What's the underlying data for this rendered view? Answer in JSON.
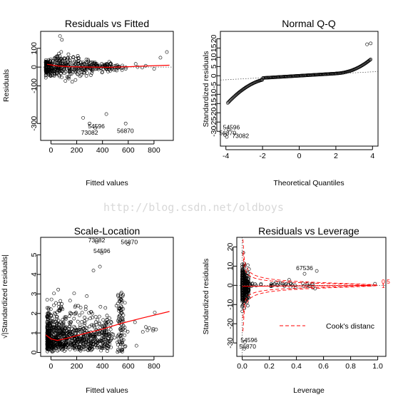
{
  "watermark": "http://blog.csdn.net/oldboys",
  "chart_data": [
    {
      "type": "scatter",
      "title": "Residuals vs Fitted",
      "xlabel": "Fitted values",
      "ylabel": "Residuals",
      "xlim": [
        -80,
        950
      ],
      "ylim": [
        -390,
        190
      ],
      "xticks": [
        "0",
        "200",
        "400",
        "600",
        "800"
      ],
      "yticks": [
        "-300",
        "-100",
        "0",
        "100"
      ],
      "xtick_values": [
        0,
        200,
        400,
        600,
        800
      ],
      "ytick_values": [
        -300,
        -100,
        0,
        100
      ],
      "annotations": [
        {
          "label": "54596",
          "x": 352,
          "y": -325
        },
        {
          "label": "73082",
          "x": 300,
          "y": -360
        },
        {
          "label": "56870",
          "x": 578,
          "y": -350
        }
      ],
      "reference_line": {
        "y": 0,
        "style": "dotted"
      },
      "smoother_color": "#ff0000",
      "smoother": [
        [
          -30,
          15
        ],
        [
          50,
          6
        ],
        [
          150,
          2
        ],
        [
          300,
          0
        ],
        [
          450,
          -1
        ],
        [
          600,
          2
        ],
        [
          750,
          6
        ],
        [
          920,
          10
        ]
      ]
    },
    {
      "type": "scatter",
      "title": "Normal Q-Q",
      "xlabel": "Theoretical Quantiles",
      "ylabel": "Standardized residuals",
      "xlim": [
        -4.3,
        4.3
      ],
      "ylim": [
        -38,
        24
      ],
      "xticks": [
        "-4",
        "-2",
        "0",
        "2",
        "4"
      ],
      "yticks": [
        "-30",
        "-25",
        "-20",
        "-15",
        "-10",
        "-5",
        "0",
        "5",
        "10",
        "15",
        "20"
      ],
      "xtick_values": [
        -4,
        -2,
        0,
        2,
        4
      ],
      "ytick_values": [
        -30,
        -25,
        -20,
        -15,
        -10,
        -5,
        0,
        5,
        10,
        15,
        20
      ],
      "annotations": [
        {
          "label": "54596",
          "x": -3.7,
          "y": -29
        },
        {
          "label": "56870",
          "x": -3.9,
          "y": -32
        },
        {
          "label": "73082",
          "x": -3.2,
          "y": -33.5
        }
      ],
      "reference_line": {
        "from": [
          -4.3,
          -2.3
        ],
        "to": [
          4.3,
          2.3
        ],
        "style": "dotted"
      }
    },
    {
      "type": "scatter",
      "title": "Scale-Location",
      "xlabel": "Fitted values",
      "ylabel": "√|Standardized residuals|",
      "xlim": [
        -80,
        950
      ],
      "ylim": [
        -0.2,
        5.9
      ],
      "xticks": [
        "0",
        "200",
        "400",
        "600",
        "800"
      ],
      "yticks": [
        "0",
        "1",
        "2",
        "3",
        "4",
        "5"
      ],
      "xtick_values": [
        0,
        200,
        400,
        600,
        800
      ],
      "ytick_values": [
        0,
        1,
        2,
        3,
        4,
        5
      ],
      "annotations": [
        {
          "label": "73082",
          "x": 355,
          "y": 5.65
        },
        {
          "label": "56870",
          "x": 608,
          "y": 5.55
        },
        {
          "label": "54596",
          "x": 395,
          "y": 5.1
        }
      ],
      "smoother_color": "#ff0000",
      "smoother": [
        [
          -40,
          0.9
        ],
        [
          0,
          0.7
        ],
        [
          50,
          0.62
        ],
        [
          120,
          0.72
        ],
        [
          250,
          0.95
        ],
        [
          400,
          1.2
        ],
        [
          550,
          1.5
        ],
        [
          700,
          1.75
        ],
        [
          920,
          2.1
        ]
      ]
    },
    {
      "type": "scatter",
      "title": "Residuals vs Leverage",
      "xlabel": "Leverage",
      "ylabel": "Standardized residuals",
      "xlim": [
        -0.04,
        1.06
      ],
      "ylim": [
        -37,
        25
      ],
      "xticks": [
        "0.0",
        "0.2",
        "0.4",
        "0.6",
        "0.8",
        "1.0"
      ],
      "yticks": [
        "-30",
        "-20",
        "-10",
        "0",
        "10",
        "20"
      ],
      "xtick_values": [
        0,
        0.2,
        0.4,
        0.6,
        0.8,
        1.0
      ],
      "ytick_values": [
        -30,
        -20,
        -10,
        0,
        10,
        20
      ],
      "annotations": [
        {
          "label": "67536",
          "x": 0.46,
          "y": 8
        },
        {
          "label": "54596",
          "x": 0.05,
          "y": -29.5
        },
        {
          "label": "56870",
          "x": 0.04,
          "y": -33
        }
      ],
      "legend": {
        "label": "Cook's distanc",
        "position": "bottom-right"
      },
      "right_labels": [
        "0.5",
        "1"
      ],
      "cooks_color": "#ff0000"
    }
  ]
}
